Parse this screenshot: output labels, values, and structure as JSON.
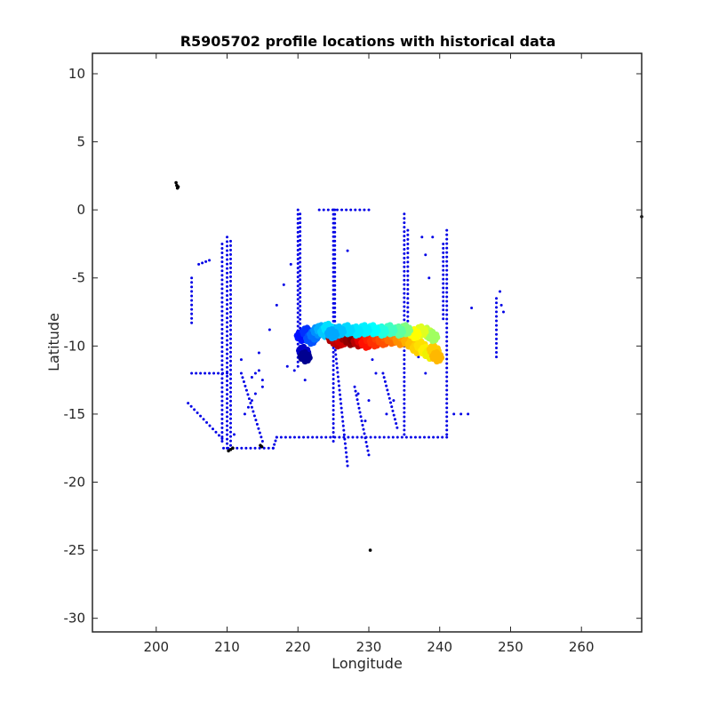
{
  "chart_data": {
    "type": "scatter",
    "title": "R5905702 profile locations with historical data",
    "xlabel": "Longitude",
    "ylabel": "Latitude",
    "xlim": [
      191,
      268.5
    ],
    "ylim": [
      -31,
      11.5
    ],
    "xticks": [
      200,
      210,
      220,
      230,
      240,
      250,
      260
    ],
    "yticks": [
      10,
      5,
      0,
      -5,
      -10,
      -15,
      -20,
      -25,
      -30
    ],
    "grid": false,
    "box": true,
    "colors": {
      "historical": "#0000e6",
      "outliers": "#000000",
      "axis": "#262626"
    },
    "historical_tracks": [
      {
        "x": [
          210.0,
          210.0
        ],
        "y": [
          -2.0,
          -17.5
        ]
      },
      {
        "x": [
          209.3,
          209.3
        ],
        "y": [
          -2.5,
          -17.0
        ]
      },
      {
        "x": [
          210.5,
          210.5
        ],
        "y": [
          -2.3,
          -17.3
        ]
      },
      {
        "x": [
          220.0,
          220.0
        ],
        "y": [
          0.0,
          -11.5
        ]
      },
      {
        "x": [
          220.3,
          220.3
        ],
        "y": [
          -0.3,
          -9.0
        ]
      },
      {
        "x": [
          225.0,
          225.0
        ],
        "y": [
          0.0,
          -17.0
        ]
      },
      {
        "x": [
          225.2,
          225.2
        ],
        "y": [
          0.0,
          -8.5
        ]
      },
      {
        "x": [
          225.0,
          227.0
        ],
        "y": [
          -9.0,
          -18.8
        ]
      },
      {
        "x": [
          235.0,
          235.0
        ],
        "y": [
          -0.3,
          -16.5
        ]
      },
      {
        "x": [
          235.5,
          235.5
        ],
        "y": [
          -1.5,
          -8.5
        ]
      },
      {
        "x": [
          241.0,
          241.0
        ],
        "y": [
          -1.5,
          -16.5
        ]
      },
      {
        "x": [
          240.5,
          240.5
        ],
        "y": [
          -2.5,
          -8.0
        ]
      },
      {
        "x": [
          248.0,
          248.0
        ],
        "y": [
          -6.5,
          -10.8
        ]
      },
      {
        "x": [
          205.0,
          205.0
        ],
        "y": [
          -5.0,
          -8.3
        ]
      },
      {
        "x": [
          204.5,
          209.3
        ],
        "y": [
          -14.2,
          -16.8
        ]
      },
      {
        "x": [
          217.0,
          241.0
        ],
        "y": [
          -16.7,
          -16.7
        ]
      },
      {
        "x": [
          209.5,
          216.5
        ],
        "y": [
          -17.5,
          -17.5
        ]
      },
      {
        "x": [
          216.5,
          217.0
        ],
        "y": [
          -17.5,
          -16.7
        ]
      },
      {
        "x": [
          223.0,
          230.0
        ],
        "y": [
          0.0,
          0.0
        ]
      },
      {
        "x": [
          205.0,
          210.0
        ],
        "y": [
          -12.0,
          -12.0
        ]
      },
      {
        "x": [
          228.0,
          230.0
        ],
        "y": [
          -13.0,
          -18.0
        ]
      },
      {
        "x": [
          232.0,
          234.0
        ],
        "y": [
          -12.0,
          -16.0
        ]
      },
      {
        "x": [
          212.0,
          215.0
        ],
        "y": [
          -12.0,
          -17.0
        ]
      }
    ],
    "historical_points": [
      [
        206.5,
        -3.9
      ],
      [
        207.0,
        -3.8
      ],
      [
        207.5,
        -3.7
      ],
      [
        206.0,
        -4.0
      ],
      [
        213.5,
        -12.3
      ],
      [
        214.0,
        -12.0
      ],
      [
        214.5,
        -11.8
      ],
      [
        215.0,
        -12.5
      ],
      [
        212.5,
        -15.0
      ],
      [
        213.0,
        -14.5
      ],
      [
        213.5,
        -14.0
      ],
      [
        212.0,
        -11.0
      ],
      [
        216.0,
        -8.8
      ],
      [
        218.0,
        -5.5
      ],
      [
        217.0,
        -7.0
      ],
      [
        219.0,
        -4.0
      ],
      [
        218.5,
        -11.5
      ],
      [
        219.5,
        -11.8
      ],
      [
        221.0,
        -12.5
      ],
      [
        214.5,
        -10.5
      ],
      [
        227.0,
        -3.0
      ],
      [
        228.5,
        -13.5
      ],
      [
        229.5,
        -15.5
      ],
      [
        230.0,
        -14.0
      ],
      [
        231.0,
        -12.0
      ],
      [
        230.5,
        -11.0
      ],
      [
        233.5,
        -14.0
      ],
      [
        232.5,
        -15.0
      ],
      [
        238.0,
        -3.3
      ],
      [
        237.5,
        -2.0
      ],
      [
        239.0,
        -2.0
      ],
      [
        238.5,
        -5.0
      ],
      [
        237.0,
        -10.8
      ],
      [
        238.0,
        -12.0
      ],
      [
        242.0,
        -15.0
      ],
      [
        243.0,
        -15.0
      ],
      [
        244.0,
        -15.0
      ],
      [
        244.5,
        -7.2
      ],
      [
        248.5,
        -6.0
      ],
      [
        248.7,
        -7.0
      ],
      [
        249.0,
        -7.5
      ],
      [
        211.0,
        -16.5
      ],
      [
        214.0,
        -13.5
      ],
      [
        215.0,
        -13.0
      ]
    ],
    "outlier_points": [
      [
        202.9,
        1.8
      ],
      [
        203.0,
        1.6
      ],
      [
        202.8,
        2.0
      ],
      [
        203.1,
        1.7
      ],
      [
        210.5,
        -17.6
      ],
      [
        210.8,
        -17.5
      ],
      [
        210.2,
        -17.7
      ],
      [
        214.7,
        -17.3
      ],
      [
        214.9,
        -17.4
      ],
      [
        230.2,
        -25.0
      ],
      [
        268.5,
        -0.5
      ]
    ],
    "profiles": [
      {
        "lon": 220.5,
        "lat": -9.3,
        "color": "#0010ff"
      },
      {
        "lon": 220.8,
        "lat": -10.4,
        "color": "#0000c8"
      },
      {
        "lon": 221.0,
        "lat": -10.8,
        "color": "#000090"
      },
      {
        "lon": 221.3,
        "lat": -9.0,
        "color": "#0030ff"
      },
      {
        "lon": 221.8,
        "lat": -9.5,
        "color": "#0050ff"
      },
      {
        "lon": 222.3,
        "lat": -9.2,
        "color": "#0070ff"
      },
      {
        "lon": 222.8,
        "lat": -8.9,
        "color": "#0090ff"
      },
      {
        "lon": 223.3,
        "lat": -8.8,
        "color": "#00b0ff"
      },
      {
        "lon": 223.8,
        "lat": -9.0,
        "color": "#00c8ff"
      },
      {
        "lon": 224.3,
        "lat": -8.7,
        "color": "#00e0ff"
      },
      {
        "lon": 225.0,
        "lat": -9.5,
        "color": "#b00000"
      },
      {
        "lon": 225.6,
        "lat": -9.7,
        "color": "#c00000"
      },
      {
        "lon": 226.2,
        "lat": -9.6,
        "color": "#d00000"
      },
      {
        "lon": 226.8,
        "lat": -9.4,
        "color": "#a00000"
      },
      {
        "lon": 227.4,
        "lat": -9.6,
        "color": "#900000"
      },
      {
        "lon": 228.0,
        "lat": -9.5,
        "color": "#800000"
      },
      {
        "lon": 228.5,
        "lat": -9.7,
        "color": "#b80000"
      },
      {
        "lon": 229.0,
        "lat": -9.6,
        "color": "#e00000"
      },
      {
        "lon": 229.6,
        "lat": -9.8,
        "color": "#ff1000"
      },
      {
        "lon": 230.2,
        "lat": -9.5,
        "color": "#ff2000"
      },
      {
        "lon": 230.8,
        "lat": -9.7,
        "color": "#ff3000"
      },
      {
        "lon": 231.4,
        "lat": -9.4,
        "color": "#ff4000"
      },
      {
        "lon": 232.0,
        "lat": -9.6,
        "color": "#ff5000"
      },
      {
        "lon": 232.6,
        "lat": -9.3,
        "color": "#ff6000"
      },
      {
        "lon": 233.2,
        "lat": -9.5,
        "color": "#ff7000"
      },
      {
        "lon": 233.8,
        "lat": -9.2,
        "color": "#ff8000"
      },
      {
        "lon": 234.4,
        "lat": -9.6,
        "color": "#ff9000"
      },
      {
        "lon": 235.0,
        "lat": -9.3,
        "color": "#ffa000"
      },
      {
        "lon": 235.6,
        "lat": -9.7,
        "color": "#ffb000"
      },
      {
        "lon": 236.2,
        "lat": -9.9,
        "color": "#ffc000"
      },
      {
        "lon": 236.8,
        "lat": -10.2,
        "color": "#ffd000"
      },
      {
        "lon": 237.4,
        "lat": -10.0,
        "color": "#ffe000"
      },
      {
        "lon": 238.0,
        "lat": -10.4,
        "color": "#fff000"
      },
      {
        "lon": 238.6,
        "lat": -10.6,
        "color": "#f0f000"
      },
      {
        "lon": 239.2,
        "lat": -10.3,
        "color": "#ffcc00"
      },
      {
        "lon": 239.6,
        "lat": -10.8,
        "color": "#ffb800"
      },
      {
        "lon": 238.2,
        "lat": -9.0,
        "color": "#c0ff40"
      },
      {
        "lon": 239.0,
        "lat": -9.3,
        "color": "#a0ff60"
      },
      {
        "lon": 237.4,
        "lat": -8.9,
        "color": "#e0ff20"
      },
      {
        "lon": 236.4,
        "lat": -9.1,
        "color": "#ffff00"
      },
      {
        "lon": 235.2,
        "lat": -8.8,
        "color": "#80ff80"
      },
      {
        "lon": 234.2,
        "lat": -8.9,
        "color": "#60ffa0"
      },
      {
        "lon": 233.0,
        "lat": -8.8,
        "color": "#40ffc0"
      },
      {
        "lon": 231.8,
        "lat": -8.9,
        "color": "#20ffe0"
      },
      {
        "lon": 230.6,
        "lat": -8.8,
        "color": "#00ffff"
      },
      {
        "lon": 229.4,
        "lat": -8.8,
        "color": "#00f0ff"
      },
      {
        "lon": 228.2,
        "lat": -8.9,
        "color": "#00e8ff"
      },
      {
        "lon": 227.0,
        "lat": -8.8,
        "color": "#00d8ff"
      },
      {
        "lon": 225.8,
        "lat": -8.9,
        "color": "#00c0ff"
      },
      {
        "lon": 224.8,
        "lat": -9.1,
        "color": "#00a8ff"
      }
    ]
  }
}
